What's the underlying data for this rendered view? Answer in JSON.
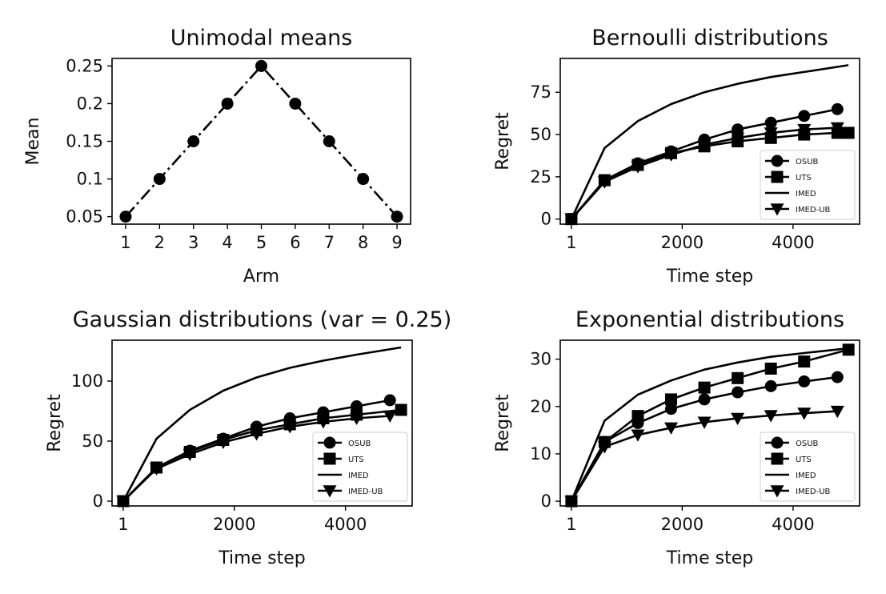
{
  "chart_data": [
    {
      "id": "unimodal",
      "type": "line",
      "title": "Unimodal means",
      "xlabel": "Arm",
      "ylabel": "Mean",
      "xlim": [
        0.6,
        9.4
      ],
      "ylim": [
        0.04,
        0.26
      ],
      "x_ticks": [
        1,
        2,
        3,
        4,
        5,
        6,
        7,
        8,
        9
      ],
      "x_tick_labels": [
        "1",
        "2",
        "3",
        "4",
        "5",
        "6",
        "7",
        "8",
        "9"
      ],
      "y_ticks": [
        0.05,
        0.1,
        0.15,
        0.2,
        0.25
      ],
      "y_tick_labels": [
        "0.05",
        "0.1",
        "0.15",
        "0.2",
        "0.25"
      ],
      "series": [
        {
          "name": "Mean",
          "marker": "circle",
          "dash": "dashdot",
          "x": [
            1,
            2,
            3,
            4,
            5,
            6,
            7,
            8,
            9
          ],
          "values": [
            0.05,
            0.1,
            0.15,
            0.2,
            0.25,
            0.2,
            0.15,
            0.1,
            0.05
          ]
        }
      ]
    },
    {
      "id": "bernoulli",
      "type": "line",
      "title": "Bernoulli distributions",
      "xlabel": "Time step",
      "ylabel": "Regret",
      "xlim": [
        -200,
        5200
      ],
      "ylim": [
        -3,
        95
      ],
      "x_ticks": [
        1,
        2000,
        4000
      ],
      "x_tick_labels": [
        "1",
        "2000",
        "4000"
      ],
      "y_ticks": [
        0,
        25,
        50,
        75
      ],
      "y_tick_labels": [
        "0",
        "25",
        "50",
        "75"
      ],
      "legend": {
        "position": "lower-right",
        "entries": [
          "OSUB",
          "UTS",
          "IMED",
          "IMED-UB"
        ]
      },
      "series": [
        {
          "name": "OSUB",
          "marker": "circle",
          "x": [
            1,
            600,
            1200,
            1800,
            2400,
            3000,
            3600,
            4200,
            4800
          ],
          "values": [
            0,
            23,
            33,
            40,
            47,
            53,
            57,
            61,
            65
          ]
        },
        {
          "name": "UTS",
          "marker": "square",
          "x": [
            1,
            600,
            1200,
            1800,
            2400,
            3000,
            3600,
            4200,
            4800,
            5000
          ],
          "values": [
            0,
            23,
            32,
            39,
            43,
            46,
            48,
            50,
            51,
            51
          ]
        },
        {
          "name": "IMED",
          "marker": "none",
          "x": [
            1,
            600,
            1200,
            1800,
            2400,
            3000,
            3600,
            4200,
            5000
          ],
          "values": [
            0,
            42,
            58,
            68,
            75,
            80,
            84,
            87,
            91
          ]
        },
        {
          "name": "IMED-UB",
          "marker": "triangle",
          "x": [
            1,
            600,
            1200,
            1800,
            2400,
            3000,
            3600,
            4200,
            4800
          ],
          "values": [
            0,
            22,
            31,
            38,
            44,
            48,
            51,
            53,
            54
          ]
        }
      ]
    },
    {
      "id": "gaussian",
      "type": "line",
      "title": "Gaussian distributions (var = 0.25)",
      "xlabel": "Time step",
      "ylabel": "Regret",
      "xlim": [
        -200,
        5200
      ],
      "ylim": [
        -4,
        134
      ],
      "x_ticks": [
        1,
        2000,
        4000
      ],
      "x_tick_labels": [
        "1",
        "2000",
        "4000"
      ],
      "y_ticks": [
        0,
        50,
        100
      ],
      "y_tick_labels": [
        "0",
        "50",
        "100"
      ],
      "legend": {
        "position": "lower-right",
        "entries": [
          "OSUB",
          "UTS",
          "IMED",
          "IMED-UB"
        ]
      },
      "series": [
        {
          "name": "OSUB",
          "marker": "circle",
          "x": [
            1,
            600,
            1200,
            1800,
            2400,
            3000,
            3600,
            4200,
            4800
          ],
          "values": [
            0,
            28,
            42,
            52,
            62,
            69,
            74,
            79,
            84
          ]
        },
        {
          "name": "UTS",
          "marker": "square",
          "x": [
            1,
            600,
            1200,
            1800,
            2400,
            3000,
            3600,
            4200,
            5000
          ],
          "values": [
            0,
            28,
            41,
            51,
            59,
            64,
            69,
            72,
            76
          ]
        },
        {
          "name": "IMED",
          "marker": "none",
          "x": [
            1,
            600,
            1200,
            1800,
            2400,
            3000,
            3600,
            4200,
            5000
          ],
          "values": [
            0,
            52,
            76,
            92,
            103,
            111,
            117,
            122,
            128
          ]
        },
        {
          "name": "IMED-UB",
          "marker": "triangle",
          "x": [
            1,
            600,
            1200,
            1800,
            2400,
            3000,
            3600,
            4200,
            4800
          ],
          "values": [
            0,
            27,
            39,
            49,
            56,
            62,
            66,
            69,
            71
          ]
        }
      ]
    },
    {
      "id": "exponential",
      "type": "line",
      "title": "Exponential distributions",
      "xlabel": "Time step",
      "ylabel": "Regret",
      "xlim": [
        -200,
        5200
      ],
      "ylim": [
        -1,
        34
      ],
      "x_ticks": [
        1,
        2000,
        4000
      ],
      "x_tick_labels": [
        "1",
        "2000",
        "4000"
      ],
      "y_ticks": [
        0,
        10,
        20,
        30
      ],
      "y_tick_labels": [
        "0",
        "10",
        "20",
        "30"
      ],
      "legend": {
        "position": "lower-right",
        "entries": [
          "OSUB",
          "UTS",
          "IMED",
          "IMED-UB"
        ]
      },
      "series": [
        {
          "name": "OSUB",
          "marker": "circle",
          "x": [
            1,
            600,
            1200,
            1800,
            2400,
            3000,
            3600,
            4200,
            4800
          ],
          "values": [
            0,
            12.5,
            16.5,
            19.5,
            21.5,
            23,
            24.3,
            25.3,
            26.2
          ]
        },
        {
          "name": "UTS",
          "marker": "square",
          "x": [
            1,
            600,
            1200,
            1800,
            2400,
            3000,
            3600,
            4200,
            5000
          ],
          "values": [
            0,
            12.5,
            18,
            21.5,
            24,
            26,
            28,
            29.5,
            32
          ]
        },
        {
          "name": "IMED",
          "marker": "none",
          "x": [
            1,
            600,
            1200,
            1800,
            2400,
            3000,
            3600,
            4200,
            5000
          ],
          "values": [
            0,
            17,
            22.5,
            25.5,
            27.8,
            29.3,
            30.5,
            31.3,
            32.3
          ]
        },
        {
          "name": "IMED-UB",
          "marker": "triangle",
          "x": [
            1,
            600,
            1200,
            1800,
            2400,
            3000,
            3600,
            4200,
            4800
          ],
          "values": [
            0,
            11.5,
            14,
            15.5,
            16.7,
            17.5,
            18.1,
            18.6,
            19
          ]
        }
      ]
    }
  ]
}
